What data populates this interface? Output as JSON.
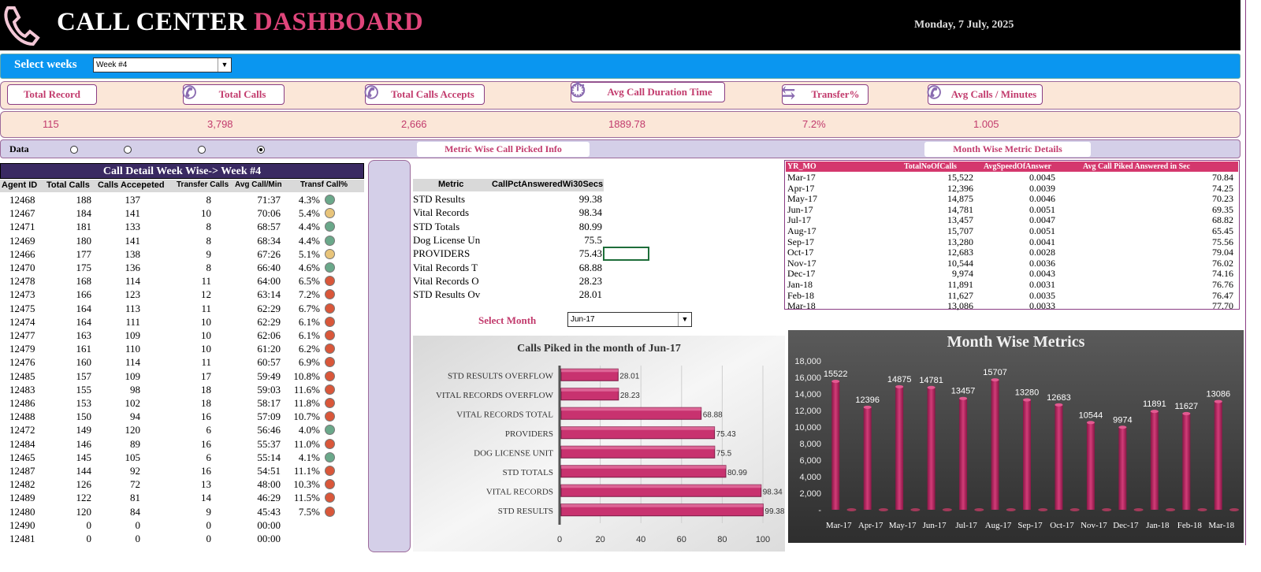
{
  "header": {
    "title_main": "CALL CENTER ",
    "title_accent": "DASHBOARD",
    "date": "Monday, 7 July, 2025"
  },
  "week_bar": {
    "label": "Select weeks",
    "selected": "Week #4"
  },
  "kpis": [
    {
      "label": "Total Record",
      "value": "115",
      "icon": "none"
    },
    {
      "label": "Total Calls",
      "value": "3,798",
      "icon": "phone-icon"
    },
    {
      "label": "Total Calls Accepts",
      "value": "2,666",
      "icon": "phone-icon"
    },
    {
      "label": "Avg Call Duration Time",
      "value": "1889.78",
      "icon": "stopwatch-icon"
    },
    {
      "label": "Transfer%",
      "value": "7.2%",
      "icon": "transfer-arrows-icon"
    },
    {
      "label": "Avg Calls / Minutes",
      "value": "1.005",
      "icon": "phone-icon"
    }
  ],
  "data_row": {
    "label": "Data",
    "radios": [
      false,
      false,
      false,
      true
    ],
    "metric_button": "Metric Wise Call Picked Info",
    "month_button": "Month Wise Metric Details"
  },
  "agent_table": {
    "title": "Call Detail Week Wise-> Week #4",
    "columns": [
      "Agent ID",
      "Total Calls",
      "Calls Accepeted",
      "Transfer Calls",
      "Avg Call/Min",
      "Transf Call%"
    ],
    "rows": [
      [
        "12468",
        "188",
        "137",
        "8",
        "71:37",
        "4.3%",
        "green"
      ],
      [
        "12467",
        "184",
        "141",
        "10",
        "70:06",
        "5.4%",
        "yellow"
      ],
      [
        "12471",
        "181",
        "133",
        "8",
        "68:57",
        "4.4%",
        "green"
      ],
      [
        "12469",
        "180",
        "141",
        "8",
        "68:34",
        "4.4%",
        "green"
      ],
      [
        "12466",
        "177",
        "138",
        "9",
        "67:26",
        "5.1%",
        "yellow"
      ],
      [
        "12470",
        "175",
        "136",
        "8",
        "66:40",
        "4.6%",
        "green"
      ],
      [
        "12478",
        "168",
        "114",
        "11",
        "64:00",
        "6.5%",
        "red"
      ],
      [
        "12473",
        "166",
        "123",
        "12",
        "63:14",
        "7.2%",
        "red"
      ],
      [
        "12475",
        "164",
        "113",
        "11",
        "62:29",
        "6.7%",
        "red"
      ],
      [
        "12474",
        "164",
        "111",
        "10",
        "62:29",
        "6.1%",
        "red"
      ],
      [
        "12477",
        "163",
        "109",
        "10",
        "62:06",
        "6.1%",
        "red"
      ],
      [
        "12479",
        "161",
        "110",
        "10",
        "61:20",
        "6.2%",
        "red"
      ],
      [
        "12476",
        "160",
        "114",
        "11",
        "60:57",
        "6.9%",
        "red"
      ],
      [
        "12485",
        "157",
        "109",
        "17",
        "59:49",
        "10.8%",
        "red"
      ],
      [
        "12483",
        "155",
        "98",
        "18",
        "59:03",
        "11.6%",
        "red"
      ],
      [
        "12486",
        "153",
        "102",
        "18",
        "58:17",
        "11.8%",
        "red"
      ],
      [
        "12488",
        "150",
        "94",
        "16",
        "57:09",
        "10.7%",
        "red"
      ],
      [
        "12472",
        "149",
        "120",
        "6",
        "56:46",
        "4.0%",
        "green"
      ],
      [
        "12484",
        "146",
        "89",
        "16",
        "55:37",
        "11.0%",
        "red"
      ],
      [
        "12465",
        "145",
        "105",
        "6",
        "55:14",
        "4.1%",
        "green"
      ],
      [
        "12487",
        "144",
        "92",
        "16",
        "54:51",
        "11.1%",
        "red"
      ],
      [
        "12482",
        "126",
        "72",
        "13",
        "48:00",
        "10.3%",
        "red"
      ],
      [
        "12489",
        "122",
        "81",
        "14",
        "46:29",
        "11.5%",
        "red"
      ],
      [
        "12480",
        "120",
        "84",
        "9",
        "45:43",
        "7.5%",
        "red"
      ],
      [
        "12490",
        "0",
        "0",
        "0",
        "00:00",
        "",
        ""
      ],
      [
        "12481",
        "0",
        "0",
        "0",
        "00:00",
        "",
        ""
      ]
    ]
  },
  "dot_colors": {
    "green": "#6aa88a",
    "yellow": "#e8c47a",
    "red": "#d9573a"
  },
  "metric_table": {
    "columns": [
      "Metric",
      "CallPctAnsweredWi30Secs"
    ],
    "rows": [
      [
        "STD Results",
        "99.38"
      ],
      [
        "Vital Records",
        "98.34"
      ],
      [
        "STD Totals",
        "80.99"
      ],
      [
        "Dog License Un",
        "75.5"
      ],
      [
        "PROVIDERS",
        "75.43"
      ],
      [
        "Vital Records T",
        "68.88"
      ],
      [
        "Vital Records O",
        "28.23"
      ],
      [
        "STD Results Ov",
        "28.01"
      ]
    ]
  },
  "month_select": {
    "label": "Select Month",
    "selected": "Jun-17"
  },
  "month_table": {
    "columns": [
      "YR_MO",
      "TotalNoOfCalls",
      "AvgSpeedOfAnswer",
      "Avg Call Piked Answered in Sec"
    ],
    "rows": [
      [
        "Mar-17",
        "15,522",
        "0.0045",
        "70.84"
      ],
      [
        "Apr-17",
        "12,396",
        "0.0039",
        "74.25"
      ],
      [
        "May-17",
        "14,875",
        "0.0046",
        "70.23"
      ],
      [
        "Jun-17",
        "14,781",
        "0.0051",
        "69.35"
      ],
      [
        "Jul-17",
        "13,457",
        "0.0047",
        "68.82"
      ],
      [
        "Aug-17",
        "15,707",
        "0.0051",
        "65.45"
      ],
      [
        "Sep-17",
        "13,280",
        "0.0041",
        "75.56"
      ],
      [
        "Oct-17",
        "12,683",
        "0.0028",
        "79.04"
      ],
      [
        "Nov-17",
        "10,544",
        "0.0036",
        "76.02"
      ],
      [
        "Dec-17",
        "9,974",
        "0.0043",
        "74.16"
      ],
      [
        "Jan-18",
        "11,891",
        "0.0031",
        "76.76"
      ],
      [
        "Feb-18",
        "11,627",
        "0.0035",
        "76.47"
      ],
      [
        "Mar-18",
        "13,086",
        "0.0033",
        "77.70"
      ]
    ]
  },
  "chart_data": [
    {
      "type": "bar",
      "orientation": "horizontal",
      "title": "Calls Piked in the month of  Jun-17",
      "categories": [
        "STD RESULTS OVERFLOW",
        "VITAL RECORDS OVERFLOW",
        "VITAL RECORDS TOTAL",
        "PROVIDERS",
        "DOG LICENSE UNIT",
        "STD TOTALS",
        "VITAL RECORDS",
        "STD RESULTS"
      ],
      "values": [
        28.01,
        28.23,
        68.88,
        75.43,
        75.5,
        80.99,
        98.34,
        99.38
      ],
      "xlim": [
        0,
        100
      ],
      "xticks": [
        "0",
        "20",
        "40",
        "60",
        "80",
        "100"
      ],
      "color": "#c8326f"
    },
    {
      "type": "bar",
      "title": "Month Wise Metrics",
      "categories": [
        "Mar-17",
        "Apr-17",
        "May-17",
        "Jun-17",
        "Jul-17",
        "Aug-17",
        "Sep-17",
        "Oct-17",
        "Nov-17",
        "Dec-17",
        "Jan-18",
        "Feb-18",
        "Mar-18"
      ],
      "values": [
        15522,
        12396,
        14875,
        14781,
        13457,
        15707,
        13280,
        12683,
        10544,
        9974,
        11891,
        11627,
        13086
      ],
      "ylim": [
        0,
        18000
      ],
      "yticks": [
        "-",
        "2,000",
        "4,000",
        "6,000",
        "8,000",
        "10,000",
        "12,000",
        "14,000",
        "16,000",
        "18,000"
      ],
      "color": "#b0205a"
    }
  ]
}
